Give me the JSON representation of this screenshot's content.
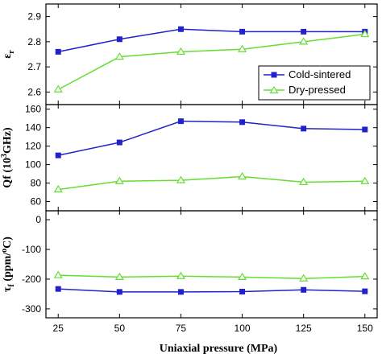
{
  "chart_data": {
    "type": "line",
    "x": [
      25,
      50,
      75,
      100,
      125,
      150
    ],
    "xlabel": "Uniaxial pressure (MPa)",
    "xlim": [
      20,
      155
    ],
    "x_ticks": [
      "25",
      "50",
      "75",
      "100",
      "125",
      "150"
    ],
    "legend": {
      "placement": "inside top panel, lower-right",
      "entries": [
        "Cold-sintered",
        "Dry-pressed"
      ]
    },
    "colors": {
      "cold": "#2222cc",
      "dry": "#66dd33"
    },
    "panels": [
      {
        "ylabel_main": "ε",
        "ylabel_sub": "r",
        "ylim": [
          2.55,
          2.95
        ],
        "y_ticks": [
          2.6,
          2.7,
          2.8,
          2.9
        ],
        "y_tick_labels": [
          "2.6",
          "2.7",
          "2.8",
          "2.9"
        ],
        "series": [
          {
            "name": "Cold-sintered",
            "values": [
              2.76,
              2.81,
              2.85,
              2.84,
              2.84,
              2.84
            ]
          },
          {
            "name": "Dry-pressed",
            "values": [
              2.61,
              2.74,
              2.76,
              2.77,
              2.8,
              2.83
            ]
          }
        ]
      },
      {
        "ylabel_pre": "Qf (10",
        "ylabel_sup": "3",
        "ylabel_post": "GHz)",
        "ylim": [
          50,
          165
        ],
        "y_ticks": [
          60,
          80,
          100,
          120,
          140,
          160
        ],
        "y_tick_labels": [
          "60",
          "80",
          "100",
          "120",
          "140",
          "160"
        ],
        "series": [
          {
            "name": "Cold-sintered",
            "values": [
              110,
              124,
              147,
              146,
              139,
              138
            ]
          },
          {
            "name": "Dry-pressed",
            "values": [
              73,
              82,
              83,
              87,
              81,
              82
            ]
          }
        ]
      },
      {
        "ylabel_main": "τ",
        "ylabel_sub": "f",
        "ylabel_unit_pre": " (ppm/",
        "ylabel_unit_sup": "o",
        "ylabel_unit_post": "C)",
        "ylim": [
          -330,
          30
        ],
        "y_ticks": [
          0,
          -100,
          -200,
          -300
        ],
        "y_tick_labels": [
          "0",
          "-100",
          "-200",
          "-300"
        ],
        "series": [
          {
            "name": "Cold-sintered",
            "values": [
              -233,
              -243,
              -243,
              -242,
              -236,
              -241
            ]
          },
          {
            "name": "Dry-pressed",
            "values": [
              -187,
              -193,
              -190,
              -193,
              -198,
              -191
            ]
          }
        ]
      }
    ]
  }
}
